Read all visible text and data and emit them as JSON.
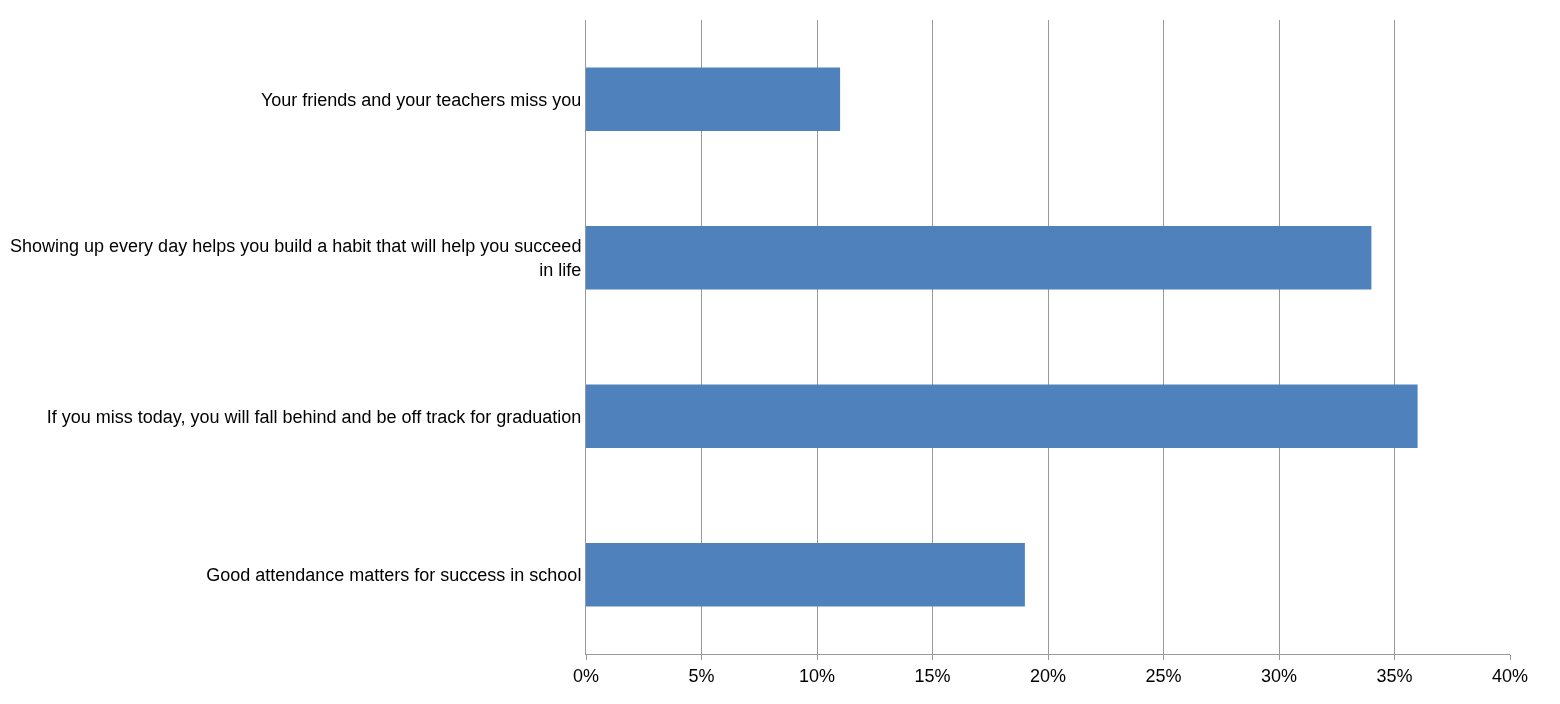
{
  "chart_data": {
    "type": "bar",
    "orientation": "horizontal",
    "categories": [
      "Your friends and your teachers miss you",
      "Showing up every day helps you build a habit that will help you succeed in life",
      "If you miss today, you will fall behind and be off track for graduation",
      "Good attendance matters for success in school"
    ],
    "values": [
      11,
      34,
      36,
      19
    ],
    "color": "#4f81bd",
    "xlim": [
      0,
      40
    ],
    "xticks": [
      {
        "value": 0,
        "label": "0%"
      },
      {
        "value": 5,
        "label": "5%"
      },
      {
        "value": 10,
        "label": "10%"
      },
      {
        "value": 15,
        "label": "15%"
      },
      {
        "value": 20,
        "label": "20%"
      },
      {
        "value": 25,
        "label": "25%"
      },
      {
        "value": 30,
        "label": "30%"
      },
      {
        "value": 35,
        "label": "35%"
      },
      {
        "value": 40,
        "label": "40%"
      }
    ],
    "grid": "x"
  }
}
